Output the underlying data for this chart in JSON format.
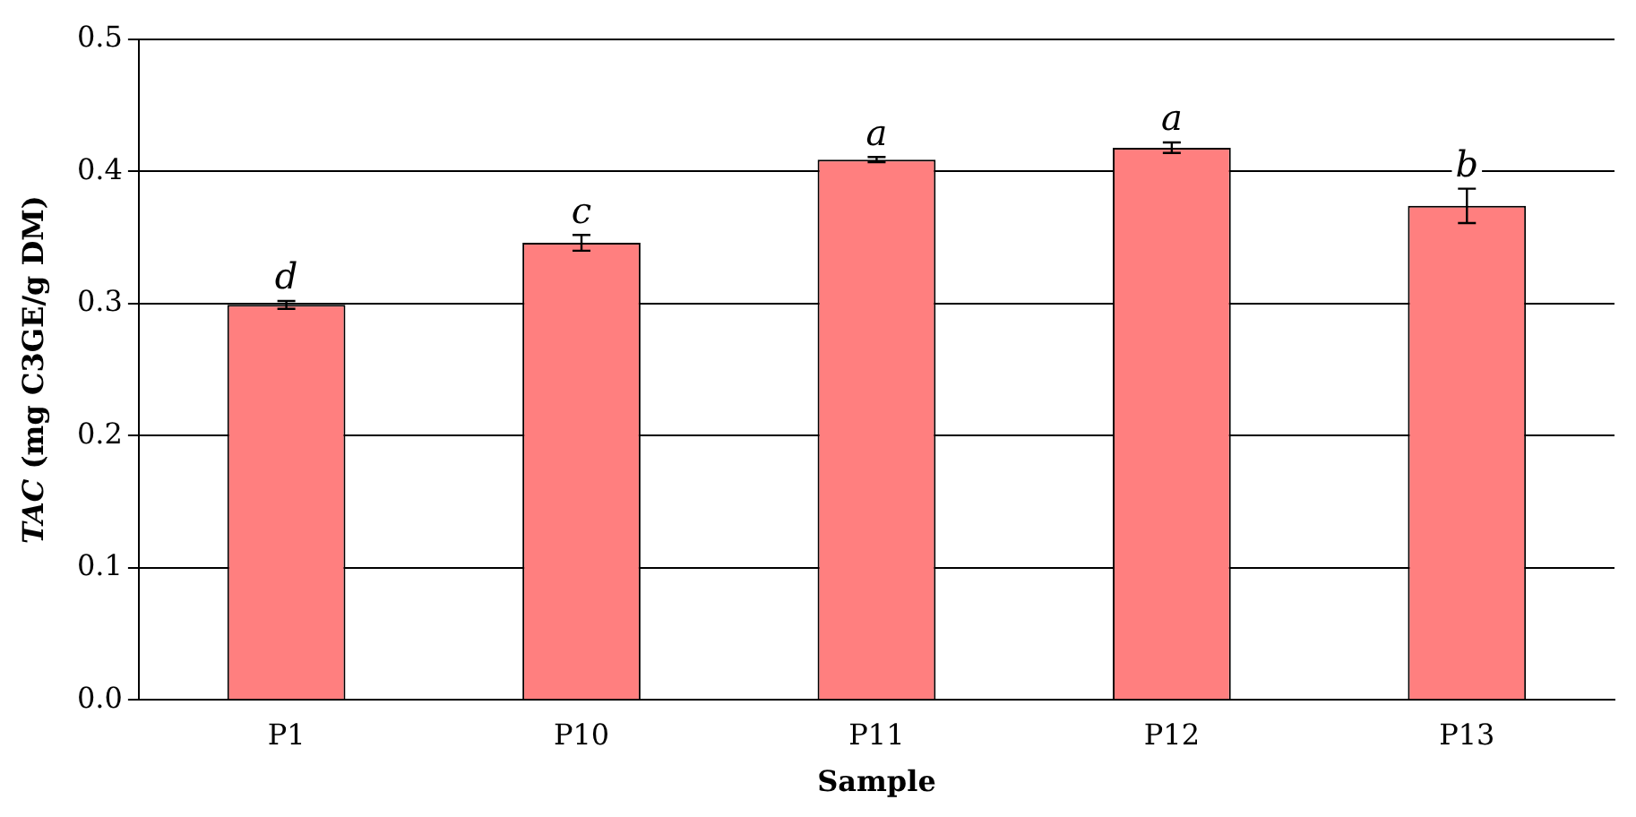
{
  "chart_data": {
    "type": "bar",
    "xlabel": "Sample",
    "ylabel": "TAC (mg C3GE/g DM)",
    "categories": [
      "P1",
      "P10",
      "P11",
      "P12",
      "P13"
    ],
    "values": [
      0.299,
      0.346,
      0.409,
      0.418,
      0.374
    ],
    "errors": [
      0.003,
      0.006,
      0.002,
      0.004,
      0.013
    ],
    "color": "#ff7f7f",
    "ylim": [
      0,
      0.5
    ],
    "yticks": [
      {
        "value": 0,
        "label": "0.0"
      },
      0.1,
      0.2,
      0.3,
      0.4,
      0.5
    ],
    "grid": "y",
    "legend": false,
    "annotations": [
      {
        "text": "d",
        "x": "P1",
        "y": 0.302
      },
      {
        "text": "c",
        "x": "P10",
        "y": 0.352
      },
      {
        "text": "a",
        "x": "P11",
        "y": 0.411
      },
      {
        "text": "a",
        "x": "P12",
        "y": 0.422
      },
      {
        "text": "b",
        "x": "P13",
        "y": 0.387
      }
    ]
  }
}
